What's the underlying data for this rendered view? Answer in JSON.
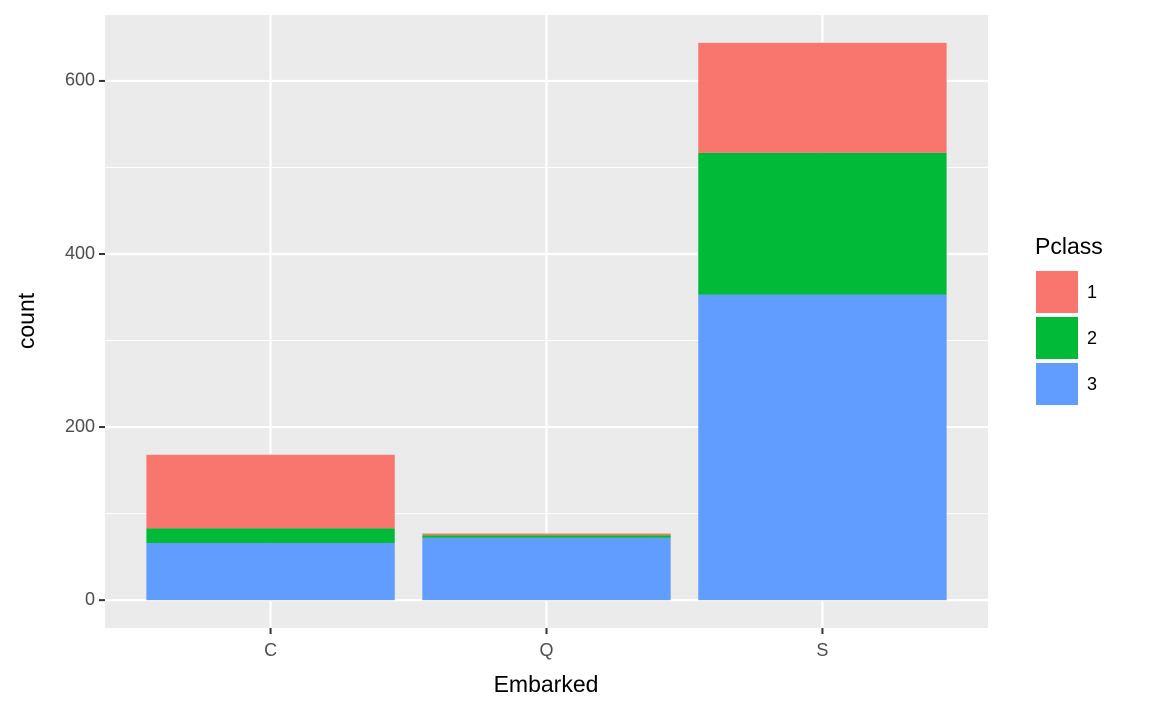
{
  "chart_data": {
    "type": "stacked-bar",
    "x_label": "Embarked",
    "y_label": "count",
    "categories": [
      "C",
      "Q",
      "S"
    ],
    "series": [
      {
        "name": "1",
        "color": "#F8766D",
        "values": [
          85,
          2,
          127
        ]
      },
      {
        "name": "2",
        "color": "#00BA38",
        "values": [
          17,
          3,
          164
        ]
      },
      {
        "name": "3",
        "color": "#619CFF",
        "values": [
          66,
          72,
          353
        ]
      }
    ],
    "legend_title": "Pclass",
    "legend_position": "right",
    "ylim": [
      -32.2,
      676.2
    ],
    "yticks": [
      0,
      200,
      400,
      600
    ],
    "grid": true
  }
}
